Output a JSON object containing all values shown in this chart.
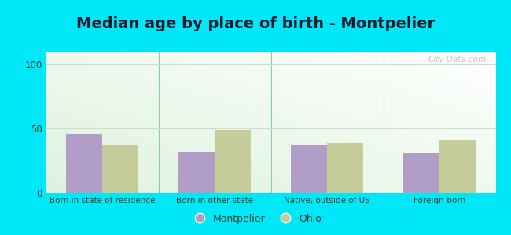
{
  "title": "Median age by place of birth - Montpelier",
  "categories": [
    "Born in state of residence",
    "Born in other state",
    "Native, outside of US",
    "Foreign-born"
  ],
  "montpelier_values": [
    46,
    32,
    37,
    31
  ],
  "ohio_values": [
    37,
    49,
    39,
    41
  ],
  "montpelier_color": "#b09ec9",
  "ohio_color": "#c5cc9a",
  "ylim": [
    0,
    110
  ],
  "yticks": [
    0,
    50,
    100
  ],
  "background_color": "#00e8f8",
  "title_fontsize": 14,
  "legend_labels": [
    "Montpelier",
    "Ohio"
  ],
  "bar_width": 0.32,
  "watermark": "City-Data.com",
  "divider_color": "#88ccaa",
  "grid_color": "#ccddcc",
  "tick_label_fontsize": 7.5,
  "ytick_fontsize": 8.5
}
